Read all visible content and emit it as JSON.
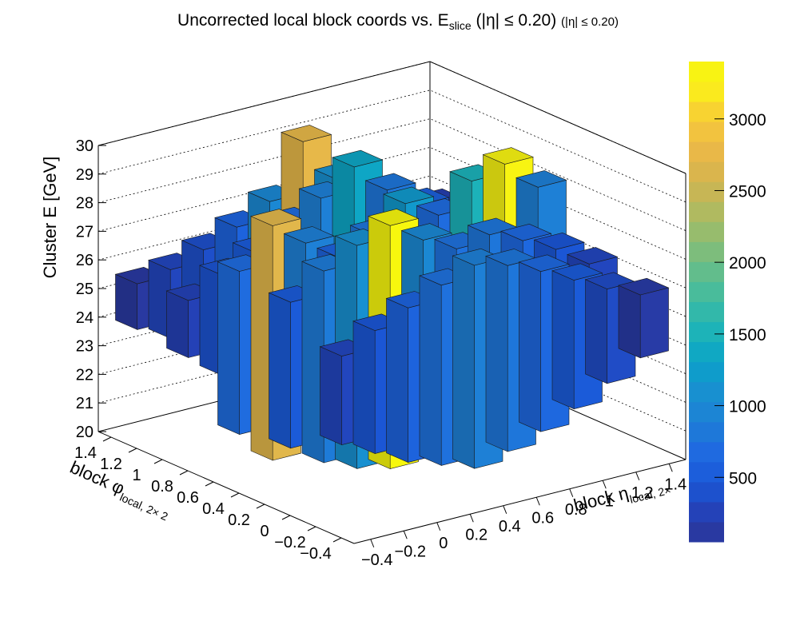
{
  "chart_data": {
    "type": "lego3d",
    "title_main": "Uncorrected local block coords vs. E",
    "title_sub": "slice",
    "title_cut": "(|η| ≤ 0.20)",
    "title_cut2": "(|η| ≤ 0.20)",
    "xlabel_main": "block η",
    "xlabel_sub": "local, 2×",
    "ylabel_main": "block φ",
    "ylabel_sub": "local, 2× 2",
    "zlabel": "Cluster E  [GeV]",
    "xlim": [
      -0.5,
      1.5
    ],
    "ylim": [
      -0.5,
      1.5
    ],
    "zlim": [
      20,
      30
    ],
    "x_ticks": [
      "−0.4",
      "−0.2",
      "0",
      "0.2",
      "0.4",
      "0.6",
      "0.8",
      "1",
      "1.2",
      "1.4"
    ],
    "y_ticks": [
      "−0.4",
      "−0.2",
      "0",
      "0.2",
      "0.4",
      "0.6",
      "0.8",
      "1",
      "1.2",
      "1.4"
    ],
    "z_ticks": [
      "20",
      "21",
      "22",
      "23",
      "24",
      "25",
      "26",
      "27",
      "28",
      "29",
      "30"
    ],
    "colorbar_ticks": [
      "500",
      "1000",
      "1500",
      "2000",
      "2500",
      "3000"
    ],
    "colorbar_range": [
      50,
      3400
    ],
    "bars": [
      {
        "x": -0.4,
        "y": 1.3,
        "z0": 24.1,
        "z1": 25.7,
        "count": 120
      },
      {
        "x": -0.2,
        "y": 1.3,
        "z0": 23.5,
        "z1": 25.9,
        "count": 300
      },
      {
        "x": 0.0,
        "y": 1.3,
        "z0": 22.8,
        "z1": 26.3,
        "count": 380
      },
      {
        "x": 0.2,
        "y": 1.3,
        "z0": 22.2,
        "z1": 26.8,
        "count": 600
      },
      {
        "x": 0.4,
        "y": 1.3,
        "z0": 21.5,
        "z1": 27.4,
        "count": 1000
      },
      {
        "x": 0.6,
        "y": 1.3,
        "z0": 20.8,
        "z1": 29.2,
        "count": 2750
      },
      {
        "x": 0.8,
        "y": 1.3,
        "z0": 21.6,
        "z1": 27.6,
        "count": 1100
      },
      {
        "x": 1.0,
        "y": 1.3,
        "z0": 22.3,
        "z1": 26.9,
        "count": 650
      },
      {
        "x": 1.2,
        "y": 1.3,
        "z0": 23.2,
        "z1": 26.1,
        "count": 350
      },
      {
        "x": 1.4,
        "y": 1.3,
        "z0": 23.8,
        "z1": 25.8,
        "count": 200
      },
      {
        "x": -0.4,
        "y": 0.9,
        "z0": 23.9,
        "z1": 25.9,
        "count": 250
      },
      {
        "x": -0.2,
        "y": 0.9,
        "z0": 23.0,
        "z1": 26.5,
        "count": 420
      },
      {
        "x": 0.0,
        "y": 0.9,
        "z0": 22.4,
        "z1": 27.0,
        "count": 500
      },
      {
        "x": 0.2,
        "y": 0.9,
        "z0": 21.9,
        "z1": 27.7,
        "count": 700
      },
      {
        "x": 0.4,
        "y": 0.9,
        "z0": 21.4,
        "z1": 28.3,
        "count": 900
      },
      {
        "x": 0.6,
        "y": 0.9,
        "z0": 21.0,
        "z1": 29.1,
        "count": 1350
      },
      {
        "x": 0.8,
        "y": 0.9,
        "z0": 21.7,
        "z1": 28.0,
        "count": 800
      },
      {
        "x": 1.0,
        "y": 0.9,
        "z0": 22.4,
        "z1": 27.2,
        "count": 550
      },
      {
        "x": 1.2,
        "y": 0.9,
        "z0": 23.0,
        "z1": 26.5,
        "count": 400
      },
      {
        "x": 1.4,
        "y": 0.9,
        "z0": 23.7,
        "z1": 25.9,
        "count": 220
      },
      {
        "x": -0.4,
        "y": 0.5,
        "z0": 22.0,
        "z1": 27.7,
        "count": 700
      },
      {
        "x": -0.2,
        "y": 0.5,
        "z0": 20.8,
        "z1": 29.0,
        "count": 2700
      },
      {
        "x": 0.0,
        "y": 0.5,
        "z0": 21.6,
        "z1": 28.1,
        "count": 900
      },
      {
        "x": 0.2,
        "y": 0.5,
        "z0": 22.1,
        "z1": 27.3,
        "count": 600
      },
      {
        "x": 0.4,
        "y": 0.5,
        "z0": 21.5,
        "z1": 27.8,
        "count": 800
      },
      {
        "x": 0.6,
        "y": 0.5,
        "z0": 21.0,
        "z1": 28.6,
        "count": 1200
      },
      {
        "x": 0.8,
        "y": 0.5,
        "z0": 21.6,
        "z1": 27.9,
        "count": 700
      },
      {
        "x": 1.0,
        "y": 0.5,
        "z0": 21.0,
        "z1": 28.8,
        "count": 1500
      },
      {
        "x": 1.2,
        "y": 0.5,
        "z0": 20.7,
        "z1": 29.1,
        "count": 3350
      },
      {
        "x": 1.4,
        "y": 0.5,
        "z0": 21.5,
        "z1": 28.0,
        "count": 900
      },
      {
        "x": -0.4,
        "y": 0.1,
        "z0": 22.3,
        "z1": 27.4,
        "count": 500
      },
      {
        "x": -0.2,
        "y": 0.1,
        "z0": 21.5,
        "z1": 28.2,
        "count": 850
      },
      {
        "x": 0.0,
        "y": 0.1,
        "z0": 21.0,
        "z1": 28.8,
        "count": 1100
      },
      {
        "x": 0.2,
        "y": 0.1,
        "z0": 20.7,
        "z1": 29.2,
        "count": 3400
      },
      {
        "x": 0.4,
        "y": 0.1,
        "z0": 21.3,
        "z1": 28.4,
        "count": 1000
      },
      {
        "x": 0.6,
        "y": 0.1,
        "z0": 21.6,
        "z1": 27.8,
        "count": 750
      },
      {
        "x": 0.8,
        "y": 0.1,
        "z0": 21.4,
        "z1": 28.0,
        "count": 800
      },
      {
        "x": 1.0,
        "y": 0.1,
        "z0": 21.9,
        "z1": 27.5,
        "count": 650
      },
      {
        "x": 1.2,
        "y": 0.1,
        "z0": 22.5,
        "z1": 26.9,
        "count": 450
      },
      {
        "x": 1.4,
        "y": 0.1,
        "z0": 23.2,
        "z1": 26.1,
        "count": 300
      },
      {
        "x": -0.4,
        "y": -0.3,
        "z0": 23.2,
        "z1": 26.3,
        "count": 300
      },
      {
        "x": -0.2,
        "y": -0.3,
        "z0": 22.6,
        "z1": 26.9,
        "count": 450
      },
      {
        "x": 0.0,
        "y": -0.3,
        "z0": 22.0,
        "z1": 27.4,
        "count": 600
      },
      {
        "x": 0.2,
        "y": -0.3,
        "z0": 21.6,
        "z1": 27.9,
        "count": 750
      },
      {
        "x": 0.4,
        "y": -0.3,
        "z0": 21.2,
        "z1": 28.3,
        "count": 900
      },
      {
        "x": 0.6,
        "y": -0.3,
        "z0": 21.5,
        "z1": 28.0,
        "count": 800
      },
      {
        "x": 0.8,
        "y": -0.3,
        "z0": 21.9,
        "z1": 27.5,
        "count": 650
      },
      {
        "x": 1.0,
        "y": -0.3,
        "z0": 22.4,
        "z1": 26.9,
        "count": 500
      },
      {
        "x": 1.2,
        "y": -0.3,
        "z0": 23.0,
        "z1": 26.3,
        "count": 350
      },
      {
        "x": 1.4,
        "y": -0.3,
        "z0": 23.6,
        "z1": 25.8,
        "count": 150
      }
    ]
  }
}
